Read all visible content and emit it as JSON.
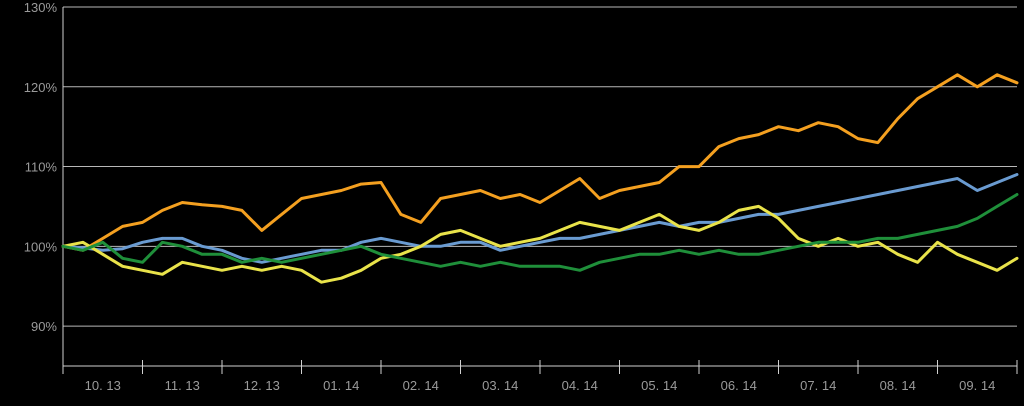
{
  "chart_data": {
    "type": "line",
    "title": "",
    "xlabel": "",
    "ylabel": "",
    "ylim": [
      0.85,
      1.3
    ],
    "y_ticks": [
      {
        "value": 0.9,
        "label": "90%"
      },
      {
        "value": 1.0,
        "label": "100%"
      },
      {
        "value": 1.1,
        "label": "110%"
      },
      {
        "value": 1.2,
        "label": "120%"
      },
      {
        "value": 1.3,
        "label": "130%"
      }
    ],
    "xlim": [
      0,
      12
    ],
    "x_tick_labels": [
      "10. 13",
      "11. 13",
      "12. 13",
      "01. 14",
      "02. 14",
      "03. 14",
      "04. 14",
      "05. 14",
      "06. 14",
      "07. 14",
      "08. 14",
      "09. 14"
    ],
    "grid": true,
    "legend": "none",
    "x": [
      0,
      0.25,
      0.5,
      0.75,
      1,
      1.25,
      1.5,
      1.75,
      2,
      2.25,
      2.5,
      2.75,
      3,
      3.25,
      3.5,
      3.75,
      4,
      4.25,
      4.5,
      4.75,
      5,
      5.25,
      5.5,
      5.75,
      6,
      6.25,
      6.5,
      6.75,
      7,
      7.25,
      7.5,
      7.75,
      8,
      8.25,
      8.5,
      8.75,
      9,
      9.25,
      9.5,
      9.75,
      10,
      10.25,
      10.5,
      10.75,
      11,
      11.25,
      11.5,
      11.75,
      12
    ],
    "series": [
      {
        "color": "#f4a020",
        "values": [
          1.0,
          0.995,
          1.01,
          1.025,
          1.03,
          1.045,
          1.055,
          1.052,
          1.05,
          1.045,
          1.02,
          1.04,
          1.06,
          1.065,
          1.07,
          1.078,
          1.08,
          1.04,
          1.03,
          1.06,
          1.065,
          1.07,
          1.06,
          1.065,
          1.055,
          1.07,
          1.085,
          1.06,
          1.07,
          1.075,
          1.08,
          1.1,
          1.1,
          1.125,
          1.135,
          1.14,
          1.15,
          1.145,
          1.155,
          1.15,
          1.135,
          1.13,
          1.16,
          1.185,
          1.2,
          1.215,
          1.2,
          1.215,
          1.205
        ]
      },
      {
        "color": "#6a9bd1",
        "values": [
          1.0,
          0.998,
          0.995,
          0.997,
          1.005,
          1.01,
          1.01,
          1.0,
          0.995,
          0.985,
          0.98,
          0.985,
          0.99,
          0.995,
          0.995,
          1.005,
          1.01,
          1.005,
          1.0,
          1.0,
          1.005,
          1.005,
          0.995,
          1.0,
          1.005,
          1.01,
          1.01,
          1.015,
          1.02,
          1.025,
          1.03,
          1.025,
          1.03,
          1.03,
          1.035,
          1.04,
          1.04,
          1.045,
          1.05,
          1.055,
          1.06,
          1.065,
          1.07,
          1.075,
          1.08,
          1.085,
          1.07,
          1.08,
          1.09
        ]
      },
      {
        "color": "#e9e34a",
        "values": [
          1.0,
          1.005,
          0.99,
          0.975,
          0.97,
          0.965,
          0.98,
          0.975,
          0.97,
          0.975,
          0.97,
          0.975,
          0.97,
          0.955,
          0.96,
          0.97,
          0.985,
          0.99,
          1.0,
          1.015,
          1.02,
          1.01,
          1.0,
          1.005,
          1.01,
          1.02,
          1.03,
          1.025,
          1.02,
          1.03,
          1.04,
          1.025,
          1.02,
          1.03,
          1.045,
          1.05,
          1.035,
          1.01,
          1.0,
          1.01,
          1.0,
          1.005,
          0.99,
          0.98,
          1.005,
          0.99,
          0.98,
          0.97,
          0.985
        ]
      },
      {
        "color": "#1f8f3a",
        "values": [
          1.0,
          0.995,
          1.005,
          0.985,
          0.98,
          1.005,
          1.0,
          0.99,
          0.99,
          0.98,
          0.985,
          0.98,
          0.985,
          0.99,
          0.995,
          1.0,
          0.99,
          0.985,
          0.98,
          0.975,
          0.98,
          0.975,
          0.98,
          0.975,
          0.975,
          0.975,
          0.97,
          0.98,
          0.985,
          0.99,
          0.99,
          0.995,
          0.99,
          0.995,
          0.99,
          0.99,
          0.995,
          1.0,
          1.005,
          1.005,
          1.005,
          1.01,
          1.01,
          1.015,
          1.02,
          1.025,
          1.035,
          1.05,
          1.065
        ]
      }
    ]
  }
}
